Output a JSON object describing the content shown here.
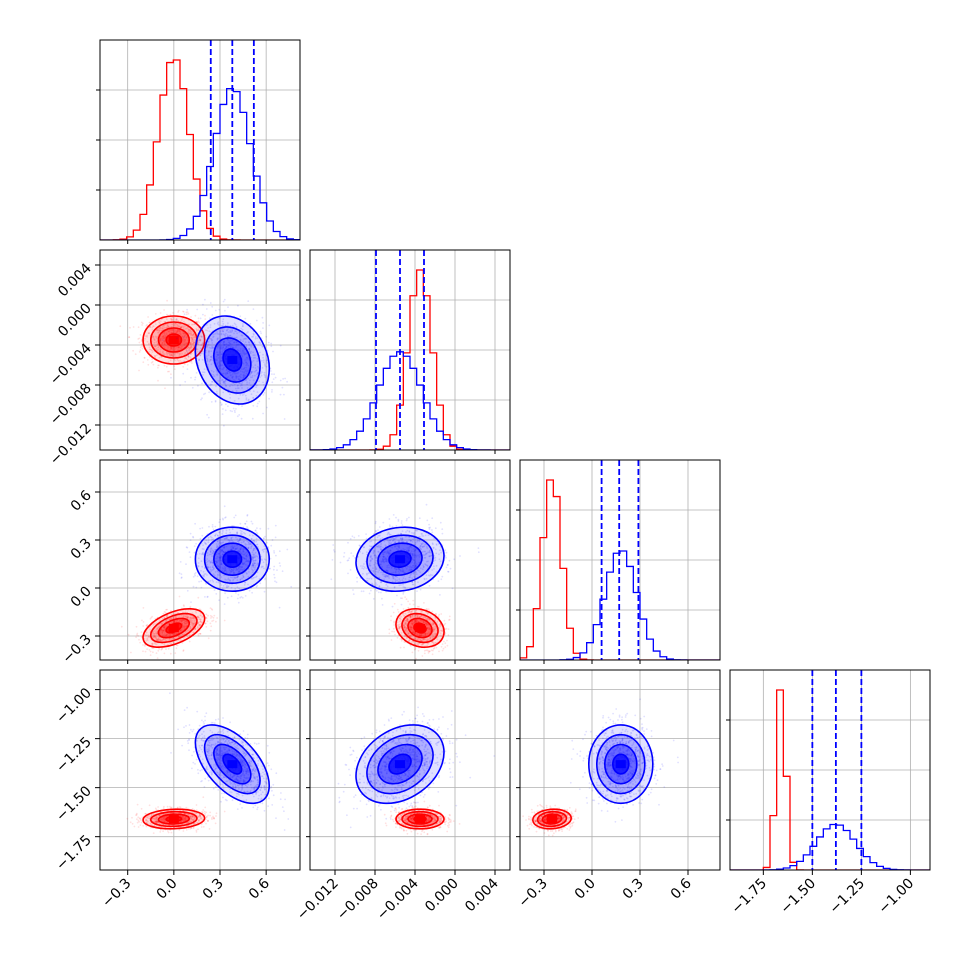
{
  "figure": {
    "type": "corner plot"
  },
  "chart_data": {
    "type": "corner",
    "colors": {
      "series_a": "#ff0000",
      "series_b": "#0000ff",
      "grid": "#b0b0b0"
    },
    "parameters": [
      {
        "ticks": [
          -0.3,
          0.0,
          0.3,
          0.6
        ],
        "tick_labels": [
          "−0.3",
          "0.0",
          "0.3",
          "0.6"
        ],
        "range": [
          -0.48,
          0.82
        ]
      },
      {
        "ticks": [
          -0.012,
          -0.008,
          -0.004,
          0.0,
          0.004
        ],
        "tick_labels": [
          "−0.012",
          "−0.008",
          "−0.004",
          "0.000",
          "0.004"
        ],
        "range": [
          -0.0145,
          0.0055
        ]
      },
      {
        "ticks": [
          -0.3,
          0.0,
          0.3,
          0.6
        ],
        "tick_labels": [
          "−0.3",
          "0.0",
          "0.3",
          "0.6"
        ],
        "range": [
          -0.45,
          0.8
        ]
      },
      {
        "ticks": [
          -1.75,
          -1.5,
          -1.25,
          -1.0
        ],
        "tick_labels": [
          "−1.75",
          "−1.50",
          "−1.25",
          "−1.00"
        ],
        "range": [
          -1.92,
          -0.9
        ]
      }
    ],
    "series": [
      {
        "key": "series_a",
        "color": "#ff0000",
        "means": [
          0.0,
          -0.0035,
          -0.25,
          -1.66
        ],
        "sigmas": [
          0.1,
          0.0012,
          0.06,
          0.025
        ],
        "correlations": {
          "0-1": 0.0,
          "0-2": 0.5,
          "1-2": -0.2,
          "0-3": 0.1,
          "1-3": 0.0,
          "2-3": 0.1
        }
      },
      {
        "key": "series_b",
        "color": "#0000ff",
        "means": [
          0.38,
          -0.0055,
          0.18,
          -1.38
        ],
        "sigmas": [
          0.12,
          0.0022,
          0.1,
          0.1
        ],
        "correlations": {
          "0-1": -0.2,
          "0-2": 0.0,
          "1-2": 0.1,
          "0-3": -0.55,
          "1-3": 0.3,
          "2-3": 0.0
        }
      }
    ],
    "quantile_lines": [
      [
        0.24,
        0.38,
        0.52
      ],
      [
        -0.0079,
        -0.0055,
        -0.0031
      ],
      [
        0.06,
        0.17,
        0.29
      ],
      [
        -1.5,
        -1.38,
        -1.25
      ]
    ]
  }
}
